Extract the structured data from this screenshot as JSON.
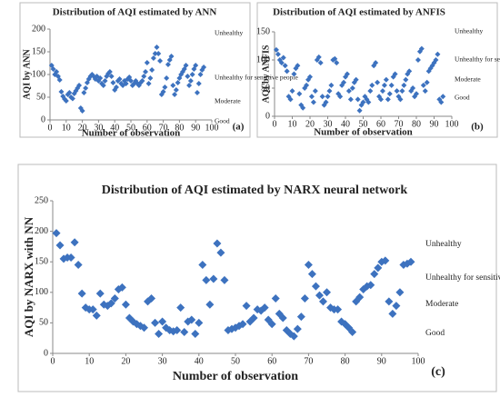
{
  "chart_data": [
    {
      "type": "scatter",
      "title": "Distribution of AQI estimated by ANN",
      "x_label": "Number of observation",
      "y_label": "AQI by ANN",
      "panel_label": "(a)",
      "color": "#3d72bf",
      "annotations": [
        "Unhealthy",
        "Unhealthy for sensitive people",
        "Moderate",
        "Good"
      ],
      "xlim": [
        0,
        100
      ],
      "xticks": [
        0,
        10,
        20,
        30,
        40,
        50,
        60,
        70,
        80,
        90,
        100
      ],
      "ylim": [
        0,
        200
      ],
      "yticks": [
        0,
        50,
        100,
        150,
        200
      ],
      "series": [
        {
          "name": "ANN",
          "color": "#3d72bf",
          "x": [
            1,
            2,
            3,
            4,
            5,
            6,
            7,
            8,
            9,
            10,
            11,
            12,
            13,
            14,
            15,
            16,
            17,
            18,
            19,
            20,
            21,
            22,
            23,
            24,
            25,
            26,
            27,
            28,
            29,
            30,
            31,
            32,
            33,
            34,
            35,
            36,
            37,
            38,
            39,
            40,
            41,
            42,
            43,
            44,
            45,
            46,
            47,
            48,
            49,
            50,
            51,
            52,
            53,
            54,
            55,
            56,
            57,
            58,
            59,
            60,
            61,
            62,
            63,
            64,
            65,
            66,
            67,
            68,
            69,
            70,
            71,
            72,
            73,
            74,
            75,
            76,
            77,
            78,
            79,
            80,
            81,
            82,
            83,
            84,
            85,
            86,
            87,
            88,
            89,
            90,
            91,
            92,
            93,
            94,
            95
          ],
          "values": [
            120,
            112,
            100,
            106,
            96,
            88,
            62,
            52,
            46,
            42,
            56,
            60,
            50,
            47,
            58,
            64,
            70,
            76,
            26,
            20,
            60,
            70,
            82,
            90,
            96,
            100,
            96,
            90,
            96,
            86,
            92,
            80,
            76,
            86,
            96,
            102,
            106,
            96,
            82,
            66,
            72,
            86,
            90,
            80,
            76,
            86,
            80,
            90,
            94,
            86,
            76,
            80,
            86,
            80,
            76,
            82,
            86,
            96,
            106,
            126,
            80,
            92,
            110,
            136,
            146,
            160,
            146,
            130,
            56,
            62,
            72,
            92,
            122,
            132,
            140,
            76,
            56,
            66,
            82,
            92,
            100,
            106,
            112,
            120,
            96,
            76,
            86,
            100,
            112,
            120,
            60,
            80,
            100,
            110,
            116
          ]
        }
      ]
    },
    {
      "type": "scatter",
      "title": "Distribution of AQI estimated by ANFIS",
      "x_label": "Number of observation",
      "y_label": "AQI by ANFIS",
      "panel_label": "(b)",
      "color": "#3d72bf",
      "annotations": [
        "Unhealthy",
        "Unhealthy for sensitive people",
        "Moderate",
        "Good"
      ],
      "xlim": [
        0,
        100
      ],
      "xticks": [
        0,
        10,
        20,
        30,
        40,
        50,
        60,
        70,
        80,
        90,
        100
      ],
      "ylim": [
        0,
        150
      ],
      "yticks": [
        0,
        50,
        100,
        150
      ],
      "series": [
        {
          "name": "ANFIS",
          "color": "#3d72bf",
          "x": [
            1,
            2,
            3,
            4,
            5,
            6,
            7,
            8,
            9,
            10,
            11,
            12,
            13,
            14,
            15,
            16,
            17,
            18,
            19,
            20,
            21,
            22,
            23,
            24,
            25,
            26,
            27,
            28,
            29,
            30,
            31,
            32,
            33,
            34,
            35,
            36,
            37,
            38,
            39,
            40,
            41,
            42,
            43,
            44,
            45,
            46,
            47,
            48,
            49,
            50,
            51,
            52,
            53,
            54,
            55,
            56,
            57,
            58,
            59,
            60,
            61,
            62,
            63,
            64,
            65,
            66,
            67,
            68,
            69,
            70,
            71,
            72,
            73,
            74,
            75,
            76,
            77,
            78,
            79,
            80,
            81,
            82,
            83,
            84,
            85,
            86,
            87,
            88,
            89,
            90,
            91,
            92,
            93,
            94,
            95
          ],
          "values": [
            118,
            110,
            100,
            95,
            104,
            90,
            80,
            35,
            30,
            45,
            75,
            85,
            90,
            40,
            20,
            15,
            50,
            55,
            65,
            70,
            35,
            25,
            45,
            100,
            105,
            95,
            35,
            20,
            25,
            35,
            45,
            55,
            100,
            102,
            95,
            40,
            35,
            55,
            60,
            70,
            75,
            45,
            30,
            50,
            60,
            65,
            30,
            10,
            20,
            25,
            35,
            30,
            25,
            45,
            55,
            90,
            95,
            60,
            35,
            30,
            45,
            55,
            65,
            30,
            40,
            55,
            70,
            75,
            45,
            35,
            30,
            45,
            55,
            65,
            75,
            80,
            45,
            50,
            35,
            40,
            100,
            115,
            120,
            55,
            45,
            60,
            80,
            85,
            90,
            95,
            100,
            110,
            30,
            25,
            35
          ]
        }
      ]
    },
    {
      "type": "scatter",
      "title": "Distribution of AQI estimated by NARX neural network",
      "x_label": "Number of observation",
      "y_label": "AQI by NARX with NN",
      "panel_label": "(c)",
      "color": "#3d72bf",
      "annotations": [
        "Unhealthy",
        "Unhealthy for sensitive people",
        "Moderate",
        "Good"
      ],
      "xlim": [
        0,
        100
      ],
      "xticks": [
        0,
        10,
        20,
        30,
        40,
        50,
        60,
        70,
        80,
        90,
        100
      ],
      "ylim": [
        0,
        250
      ],
      "yticks": [
        0,
        50,
        100,
        150,
        200,
        250
      ],
      "series": [
        {
          "name": "NARX",
          "color": "#3d72bf",
          "x": [
            1,
            2,
            3,
            4,
            5,
            6,
            7,
            8,
            9,
            10,
            11,
            12,
            13,
            14,
            15,
            16,
            17,
            18,
            19,
            20,
            21,
            22,
            23,
            24,
            25,
            26,
            27,
            28,
            29,
            30,
            31,
            32,
            33,
            34,
            35,
            36,
            37,
            38,
            39,
            40,
            41,
            42,
            43,
            44,
            45,
            46,
            47,
            48,
            49,
            50,
            51,
            52,
            53,
            54,
            55,
            56,
            57,
            58,
            59,
            60,
            61,
            62,
            63,
            64,
            65,
            66,
            67,
            68,
            69,
            70,
            71,
            72,
            73,
            74,
            75,
            76,
            77,
            78,
            79,
            80,
            81,
            82,
            83,
            84,
            85,
            86,
            87,
            88,
            89,
            90,
            91,
            92,
            93,
            94,
            95,
            96,
            97,
            98
          ],
          "values": [
            197,
            177,
            155,
            157,
            157,
            182,
            145,
            98,
            75,
            72,
            72,
            62,
            98,
            80,
            78,
            82,
            90,
            105,
            108,
            80,
            58,
            52,
            48,
            45,
            42,
            85,
            90,
            50,
            32,
            52,
            42,
            38,
            36,
            38,
            75,
            35,
            52,
            55,
            32,
            50,
            145,
            120,
            80,
            122,
            180,
            165,
            120,
            38,
            40,
            42,
            45,
            48,
            78,
            52,
            58,
            72,
            70,
            75,
            55,
            48,
            90,
            65,
            58,
            38,
            32,
            28,
            40,
            60,
            90,
            145,
            130,
            110,
            95,
            85,
            100,
            75,
            72,
            72,
            52,
            48,
            42,
            35,
            85,
            92,
            105,
            110,
            112,
            130,
            140,
            150,
            152,
            85,
            65,
            78,
            100,
            145,
            147,
            150
          ]
        }
      ]
    }
  ]
}
